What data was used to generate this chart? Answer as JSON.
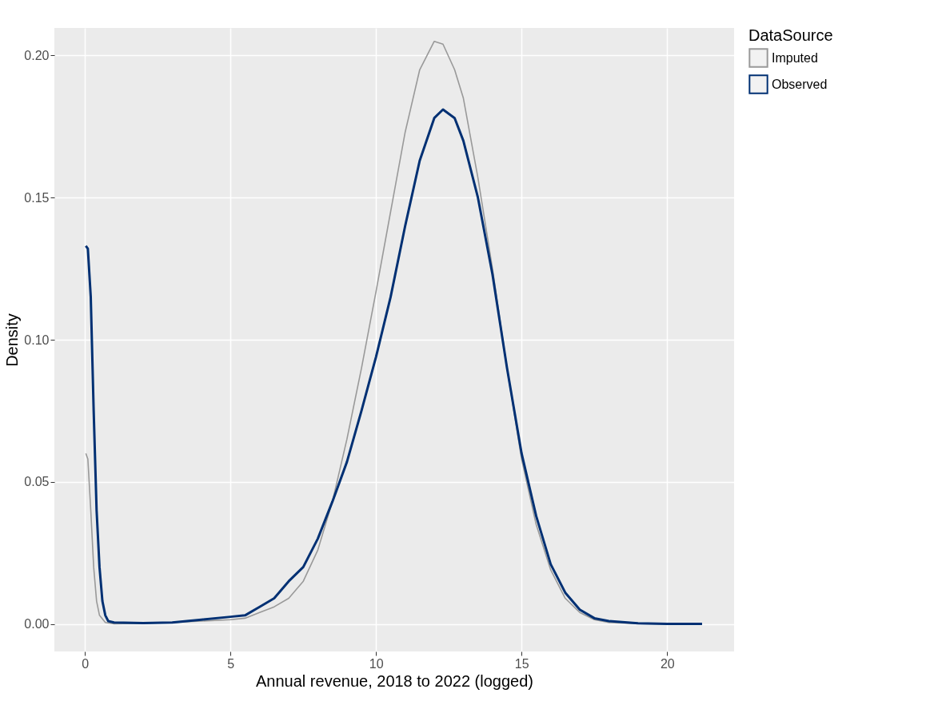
{
  "chart_data": {
    "type": "line",
    "xlabel": "Annual revenue, 2018 to 2022 (logged)",
    "ylabel": "Density",
    "legend_title": "DataSource",
    "xlim": [
      -1.05,
      22.3
    ],
    "ylim": [
      -0.0097,
      0.2097
    ],
    "xticks": [
      0,
      5,
      10,
      15,
      20
    ],
    "yticks": [
      {
        "value": 0,
        "label": "0.00"
      },
      {
        "value": 0.05,
        "label": "0.05"
      },
      {
        "value": 0.1,
        "label": "0.10"
      },
      {
        "value": 0.15,
        "label": "0.15"
      },
      {
        "value": 0.2,
        "label": "0.20"
      }
    ],
    "grid": true,
    "legend": "right",
    "line_style": "solid",
    "marker": "none",
    "series": [
      {
        "name": "Imputed",
        "color": "#999999",
        "x": [
          0.03,
          0.1,
          0.2,
          0.3,
          0.4,
          0.5,
          0.7,
          1,
          2,
          3,
          4,
          5,
          5.5,
          6,
          6.5,
          7,
          7.5,
          8,
          8.5,
          9,
          9.5,
          10,
          10.5,
          11,
          11.5,
          12,
          12.3,
          12.7,
          13,
          13.5,
          14,
          14.5,
          15,
          15.5,
          16,
          16.5,
          17,
          17.5,
          18,
          19,
          20,
          21
        ],
        "values": [
          0.06,
          0.058,
          0.04,
          0.02,
          0.008,
          0.003,
          0.0005,
          0,
          0.0002,
          0.0005,
          0.001,
          0.0015,
          0.002,
          0.004,
          0.006,
          0.009,
          0.015,
          0.026,
          0.043,
          0.065,
          0.09,
          0.117,
          0.145,
          0.173,
          0.195,
          0.205,
          0.204,
          0.195,
          0.185,
          0.157,
          0.125,
          0.09,
          0.058,
          0.035,
          0.019,
          0.009,
          0.004,
          0.0015,
          0.0005,
          0.0001,
          0,
          0
        ]
      },
      {
        "name": "Observed",
        "color": "#003073",
        "x": [
          0.03,
          0.1,
          0.2,
          0.3,
          0.4,
          0.5,
          0.6,
          0.7,
          0.8,
          1,
          2,
          3,
          4,
          5,
          5.5,
          6,
          6.5,
          7,
          7.5,
          8,
          8.5,
          9,
          9.5,
          10,
          10.5,
          11,
          11.5,
          12,
          12.3,
          12.7,
          13,
          13.5,
          14,
          14.5,
          15,
          15.5,
          16,
          16.5,
          17,
          17.5,
          18,
          19,
          20,
          21.2
        ],
        "values": [
          0.133,
          0.132,
          0.115,
          0.075,
          0.04,
          0.02,
          0.008,
          0.003,
          0.001,
          0.0005,
          0.0003,
          0.0005,
          0.0015,
          0.0025,
          0.003,
          0.006,
          0.009,
          0.015,
          0.02,
          0.03,
          0.043,
          0.057,
          0.075,
          0.094,
          0.115,
          0.14,
          0.163,
          0.178,
          0.181,
          0.178,
          0.17,
          0.15,
          0.123,
          0.09,
          0.06,
          0.038,
          0.021,
          0.011,
          0.005,
          0.002,
          0.001,
          0.0002,
          0,
          0
        ]
      }
    ]
  }
}
